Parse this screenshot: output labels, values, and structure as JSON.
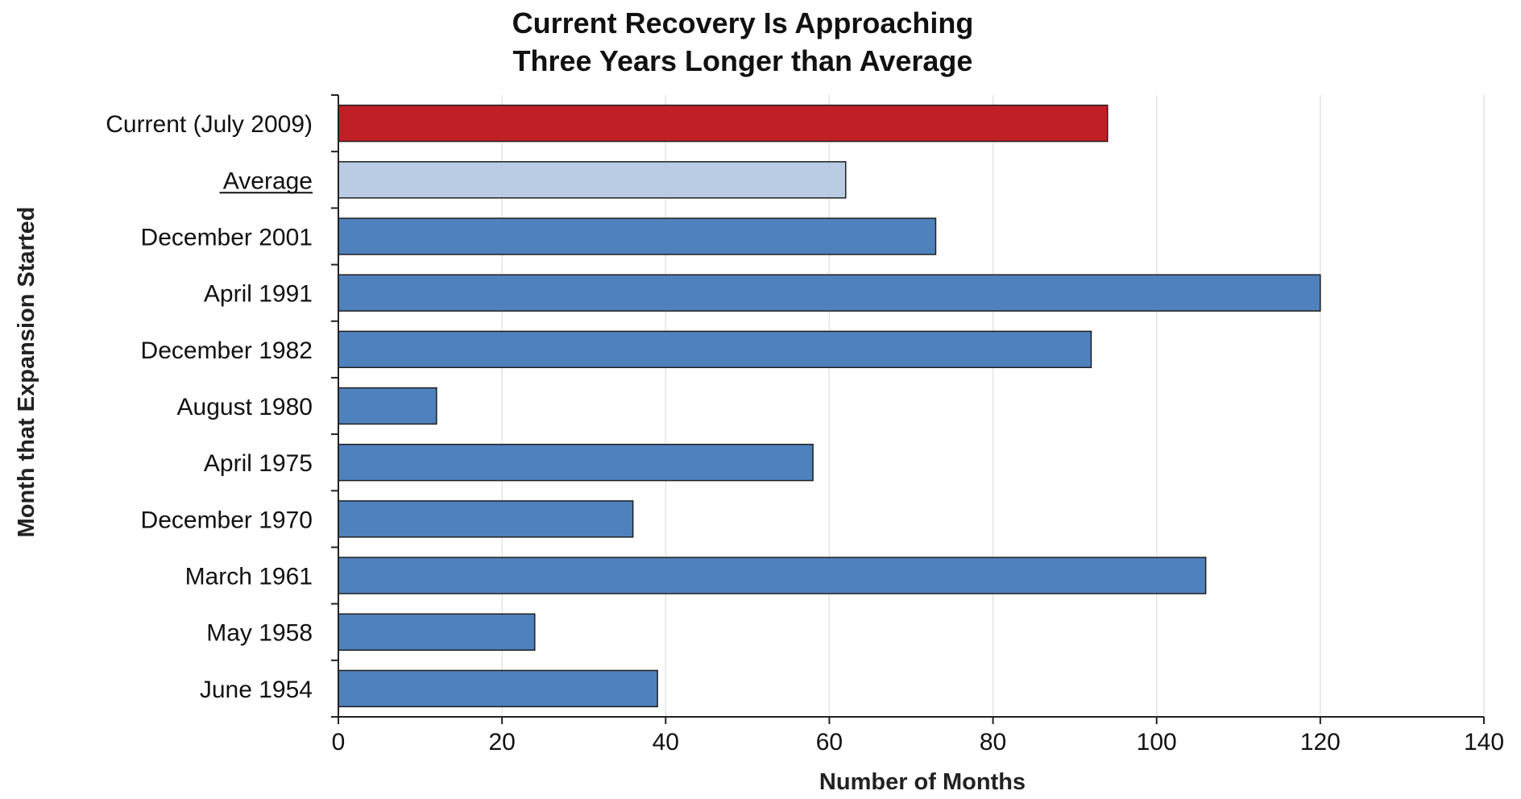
{
  "chart_data": {
    "type": "bar",
    "orientation": "horizontal",
    "title": "Current Recovery Is Approaching\nThree Years Longer than Average",
    "title_lines": [
      "Current Recovery Is Approaching",
      "Three Years Longer than Average"
    ],
    "xlabel": "Number of Months",
    "ylabel": "Month that Expansion Started",
    "xlim": [
      0,
      140
    ],
    "xticks": [
      0,
      20,
      40,
      60,
      80,
      100,
      120,
      140
    ],
    "grid": "vertical",
    "legend": "none",
    "categories": [
      "Current (July 2009)",
      "Average",
      "December 2001",
      "April 1991",
      "December 1982",
      "August 1980",
      "April 1975",
      "December 1970",
      "March 1961",
      "May 1958",
      "June 1954"
    ],
    "values": [
      94,
      62,
      73,
      120,
      92,
      12,
      58,
      36,
      106,
      24,
      39
    ],
    "bar_colors": [
      "#c01f27",
      "#b9cce4",
      "#4f81bd",
      "#4f81bd",
      "#4f81bd",
      "#4f81bd",
      "#4f81bd",
      "#4f81bd",
      "#4f81bd",
      "#4f81bd",
      "#4f81bd"
    ],
    "underlined_category": "Average",
    "colors": {
      "current": "#c01f27",
      "average": "#b9cce4",
      "default": "#4f81bd",
      "bar_outline": "#1f1f1f",
      "grid": "#e3e3e3",
      "axis": "#222222"
    }
  }
}
